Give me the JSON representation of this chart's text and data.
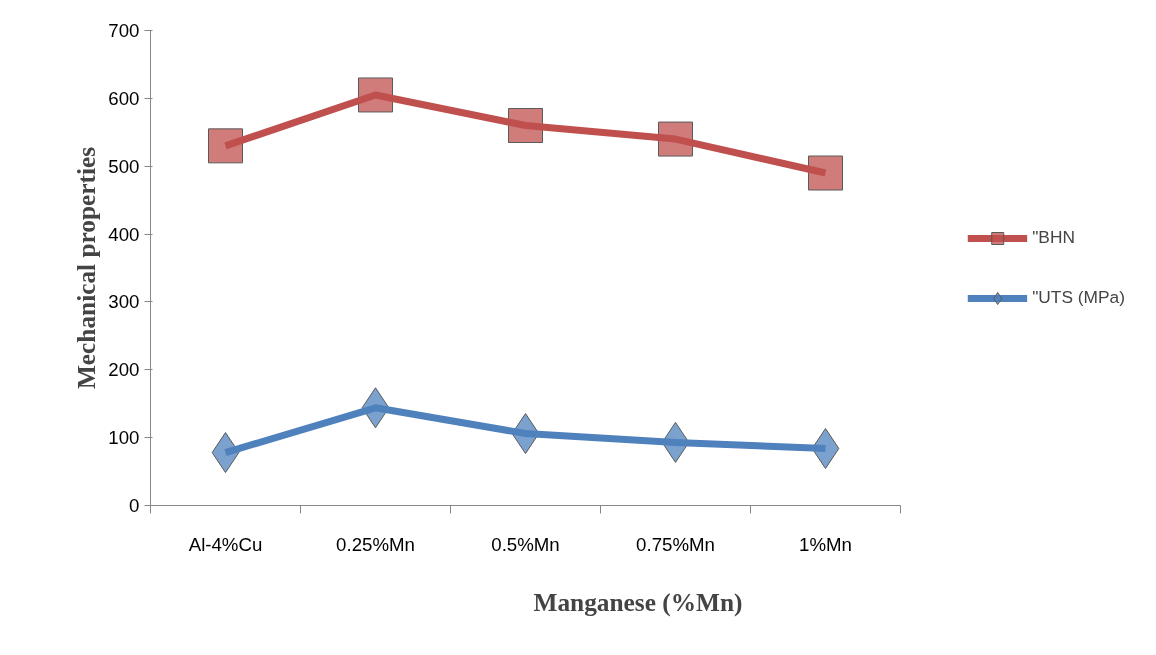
{
  "chart_data": {
    "type": "line",
    "xlabel": "Manganese (%Mn)",
    "ylabel": "Mechanical properties",
    "categories": [
      "Al-4%Cu",
      "0.25%Mn",
      "0.5%Mn",
      "0.75%Mn",
      "1%Mn"
    ],
    "series": [
      {
        "name": "\"BHN",
        "color": "#c0504d",
        "marker": "square",
        "values": [
          530,
          605,
          560,
          540,
          490
        ]
      },
      {
        "name": "\"UTS (MPa)",
        "color": "#4f81bd",
        "marker": "diamond",
        "values": [
          78,
          144,
          106,
          93,
          84
        ]
      }
    ],
    "ylim": [
      0,
      700
    ],
    "yticks": [
      0,
      100,
      200,
      300,
      400,
      500,
      600,
      700
    ],
    "grid": false,
    "legend": "right",
    "line_style": "solid"
  }
}
